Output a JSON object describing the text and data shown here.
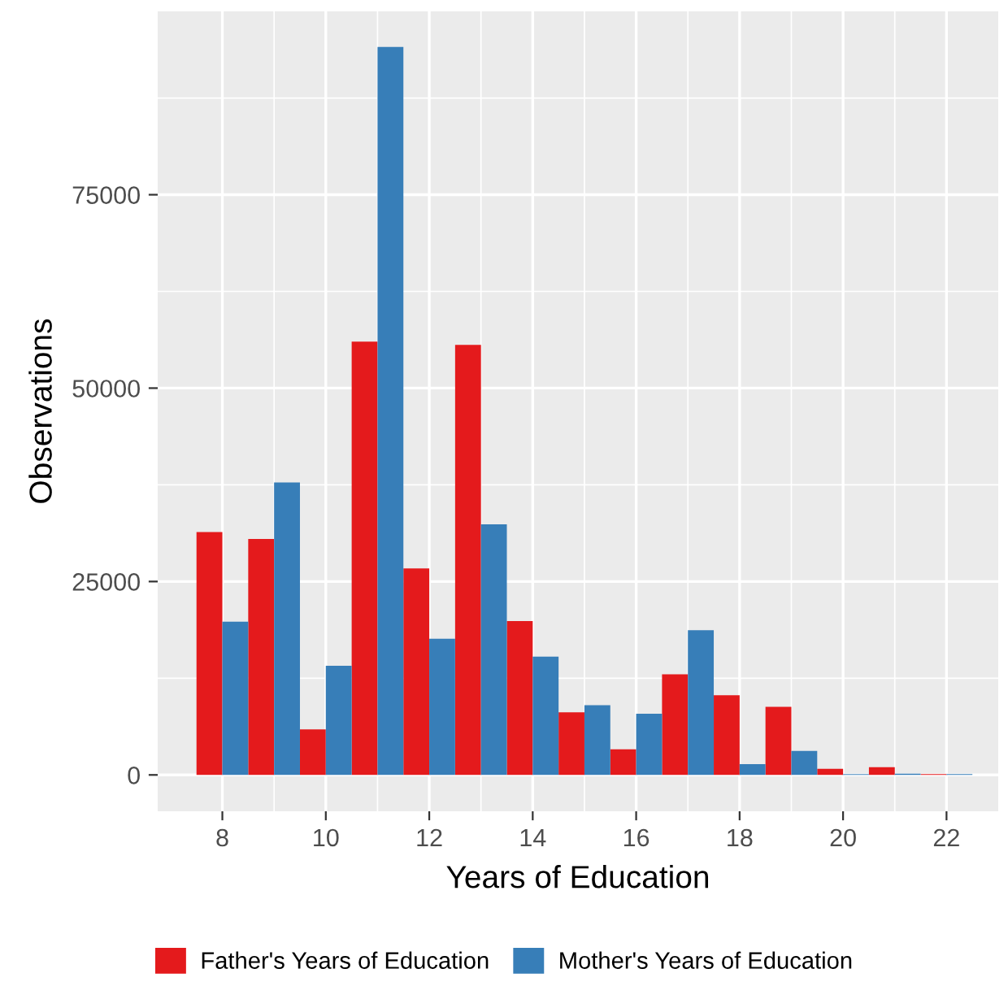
{
  "chart_data": {
    "type": "bar",
    "xlabel": "Years of Education",
    "ylabel": "Observations",
    "x": [
      8,
      9,
      10,
      11,
      12,
      13,
      14,
      15,
      16,
      17,
      18,
      19,
      20,
      21,
      22
    ],
    "series": [
      {
        "name": "Father's Years of Education",
        "color": "#e41a1c",
        "values": [
          31400,
          30500,
          5900,
          56000,
          26700,
          55600,
          19900,
          8100,
          3300,
          13000,
          10300,
          8800,
          800,
          1000,
          100
        ]
      },
      {
        "name": "Mother's Years of Education",
        "color": "#377eb8",
        "values": [
          19800,
          37800,
          14100,
          94100,
          17600,
          32400,
          15300,
          9000,
          7900,
          18700,
          1400,
          3100,
          100,
          150,
          100
        ]
      }
    ],
    "xlim": [
      6.75,
      23.0
    ],
    "xticks": [
      8,
      10,
      12,
      14,
      16,
      18,
      20,
      22
    ],
    "ylim": [
      -4700,
      98700
    ],
    "yticks": [
      0,
      25000,
      50000,
      75000
    ],
    "grid": true,
    "legend": "bottom"
  }
}
